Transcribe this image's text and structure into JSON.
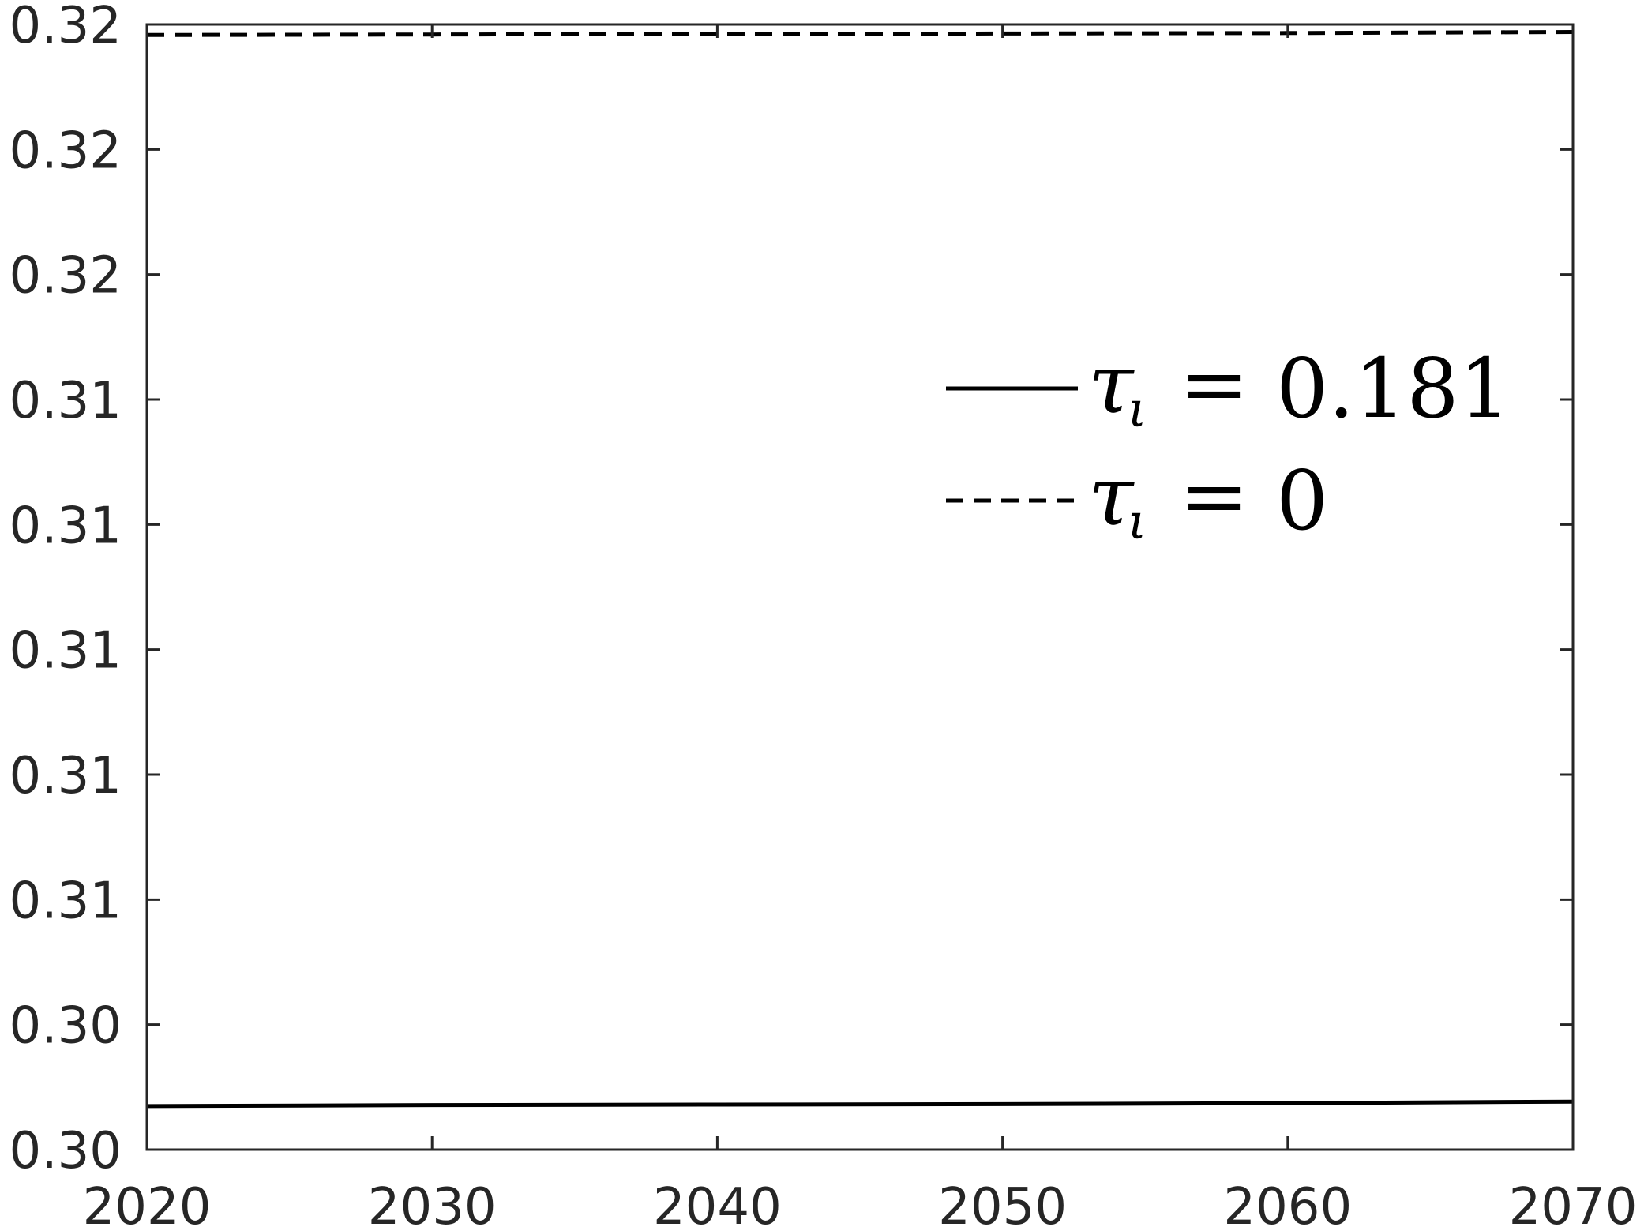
{
  "chart_data": {
    "type": "line",
    "title": "",
    "xlabel": "",
    "ylabel": "",
    "x": [
      2020,
      2030,
      2040,
      2050,
      2060,
      2070
    ],
    "xlim": [
      2020,
      2070
    ],
    "ylim": [
      0.3,
      0.3225
    ],
    "x_ticks": [
      2020,
      2030,
      2040,
      2050,
      2060,
      2070
    ],
    "x_tick_labels": [
      "2020",
      "2030",
      "2040",
      "2050",
      "2060",
      "2070"
    ],
    "y_ticks": [
      0.3,
      0.3025,
      0.305,
      0.3075,
      0.31,
      0.3125,
      0.315,
      0.3175,
      0.32,
      0.3225
    ],
    "y_tick_labels": [
      "0.30",
      "0.30",
      "0.31",
      "0.31",
      "0.31",
      "0.31",
      "0.31",
      "0.32",
      "0.32",
      "0.32"
    ],
    "grid": false,
    "legend_position": "center-right",
    "series": [
      {
        "name": "τι = 0.181",
        "legend": {
          "symbol": "τ",
          "subscript": "ι",
          "relation": "=",
          "value": "0.181"
        },
        "line_style": "solid",
        "color": "#000000",
        "y": [
          0.30087,
          0.30089,
          0.3009,
          0.30091,
          0.30093,
          0.30096
        ]
      },
      {
        "name": "τι = 0",
        "legend": {
          "symbol": "τ",
          "subscript": "ι",
          "relation": "=",
          "value": "0"
        },
        "line_style": "dashed",
        "color": "#000000",
        "y": [
          0.32229,
          0.3223,
          0.32231,
          0.32232,
          0.32233,
          0.32235
        ]
      }
    ]
  }
}
